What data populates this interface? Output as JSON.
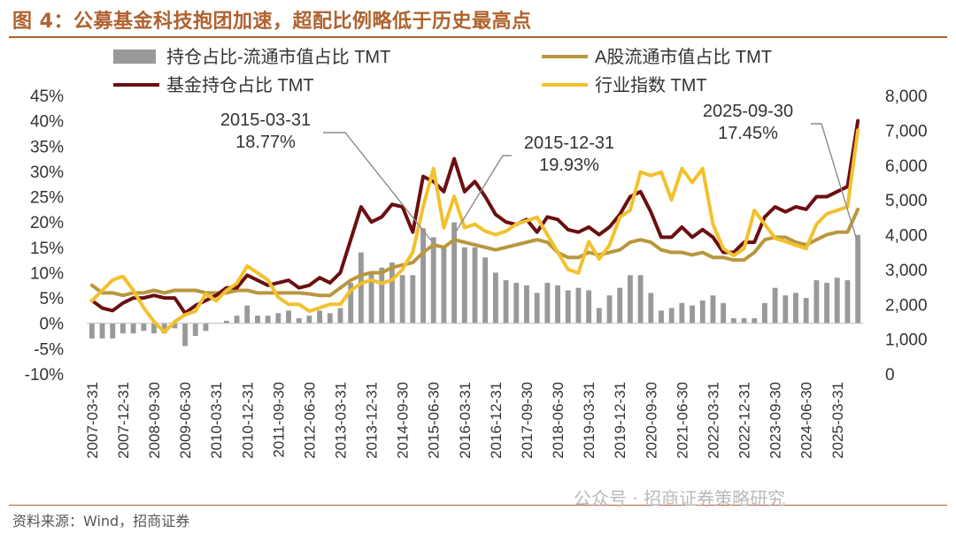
{
  "figure": {
    "title": "图 4：公募基金科技抱团加速，超配比例略低于历史最高点",
    "source": "资料来源：Wind，招商证券",
    "watermark": "公众号 · 招商证券策略研究"
  },
  "colors": {
    "title": "#B0622F",
    "fund_holding": "#6B0F12",
    "a_share": "#B8973D",
    "industry_index": "#F2C12E",
    "bars": "#999999"
  },
  "chart_data": {
    "type": "bar+line",
    "title": "",
    "xlabel": "",
    "ylabel_left": "",
    "ylabel_right": "",
    "ylim_left": [
      -0.1,
      0.45
    ],
    "yticks_left": [
      "-10%",
      "-5%",
      "0%",
      "5%",
      "10%",
      "15%",
      "20%",
      "25%",
      "30%",
      "35%",
      "40%",
      "45%"
    ],
    "ylim_right": [
      0,
      8000
    ],
    "yticks_right": [
      "0",
      "1,000",
      "2,000",
      "3,000",
      "4,000",
      "5,000",
      "6,000",
      "7,000",
      "8,000"
    ],
    "grid": false,
    "legend_position": "top",
    "x_tick_labels": [
      "2007-03-31",
      "2007-12-31",
      "2008-09-30",
      "2009-06-30",
      "2010-03-31",
      "2010-12-31",
      "2011-09-30",
      "2012-06-30",
      "2013-03-31",
      "2013-12-31",
      "2014-09-30",
      "2015-06-30",
      "2016-03-31",
      "2016-12-31",
      "2017-09-30",
      "2018-06-30",
      "2019-03-31",
      "2019-12-31",
      "2020-09-30",
      "2021-06-30",
      "2022-03-31",
      "2022-12-31",
      "2023-09-30",
      "2024-06-30",
      "2025-03-31"
    ],
    "quarters": [
      "2007-03-31",
      "2007-06-30",
      "2007-09-30",
      "2007-12-31",
      "2008-03-31",
      "2008-06-30",
      "2008-09-30",
      "2008-12-31",
      "2009-03-31",
      "2009-06-30",
      "2009-09-30",
      "2009-12-31",
      "2010-03-31",
      "2010-06-30",
      "2010-09-30",
      "2010-12-31",
      "2011-03-31",
      "2011-06-30",
      "2011-09-30",
      "2011-12-31",
      "2012-03-31",
      "2012-06-30",
      "2012-09-30",
      "2012-12-31",
      "2013-03-31",
      "2013-06-30",
      "2013-09-30",
      "2013-12-31",
      "2014-03-31",
      "2014-06-30",
      "2014-09-30",
      "2014-12-31",
      "2015-03-31",
      "2015-06-30",
      "2015-09-30",
      "2015-12-31",
      "2016-03-31",
      "2016-06-30",
      "2016-09-30",
      "2016-12-31",
      "2017-03-31",
      "2017-06-30",
      "2017-09-30",
      "2017-12-31",
      "2018-03-31",
      "2018-06-30",
      "2018-09-30",
      "2018-12-31",
      "2019-03-31",
      "2019-06-30",
      "2019-09-30",
      "2019-12-31",
      "2020-03-31",
      "2020-06-30",
      "2020-09-30",
      "2020-12-31",
      "2021-03-31",
      "2021-06-30",
      "2021-09-30",
      "2021-12-31",
      "2022-03-31",
      "2022-06-30",
      "2022-09-30",
      "2022-12-31",
      "2023-03-31",
      "2023-06-30",
      "2023-09-30",
      "2023-12-31",
      "2024-03-31",
      "2024-06-30",
      "2024-09-30",
      "2024-12-31",
      "2025-03-31",
      "2025-06-30",
      "2025-09-30"
    ],
    "series": [
      {
        "name": "持仓占比-流通市值占比 TMT",
        "type": "bar",
        "axis": "left",
        "color": "#999999",
        "values": [
          -0.03,
          -0.03,
          -0.03,
          -0.02,
          -0.02,
          -0.015,
          -0.02,
          -0.02,
          -0.01,
          -0.045,
          -0.025,
          -0.015,
          0.0,
          0.005,
          0.015,
          0.035,
          0.015,
          0.015,
          0.02,
          0.025,
          0.01,
          0.015,
          0.025,
          0.02,
          0.03,
          0.08,
          0.14,
          0.1,
          0.11,
          0.12,
          0.095,
          0.095,
          0.1877,
          0.17,
          0.15,
          0.1993,
          0.15,
          0.15,
          0.13,
          0.1,
          0.085,
          0.08,
          0.075,
          0.06,
          0.08,
          0.075,
          0.065,
          0.07,
          0.065,
          0.03,
          0.055,
          0.07,
          0.095,
          0.095,
          0.06,
          0.025,
          0.03,
          0.04,
          0.035,
          0.045,
          0.055,
          0.04,
          0.01,
          0.01,
          0.01,
          0.04,
          0.07,
          0.055,
          0.06,
          0.05,
          0.085,
          0.08,
          0.09,
          0.085,
          0.1745
        ]
      },
      {
        "name": "A股流通市值占比 TMT",
        "type": "line",
        "axis": "left",
        "color": "#B8973D",
        "values": [
          0.075,
          0.06,
          0.06,
          0.055,
          0.06,
          0.06,
          0.065,
          0.06,
          0.065,
          0.065,
          0.065,
          0.06,
          0.06,
          0.06,
          0.065,
          0.065,
          0.06,
          0.06,
          0.06,
          0.06,
          0.06,
          0.058,
          0.055,
          0.055,
          0.07,
          0.085,
          0.095,
          0.1,
          0.1,
          0.11,
          0.115,
          0.12,
          0.14,
          0.155,
          0.15,
          0.165,
          0.16,
          0.155,
          0.15,
          0.145,
          0.15,
          0.155,
          0.16,
          0.165,
          0.16,
          0.14,
          0.13,
          0.13,
          0.14,
          0.135,
          0.14,
          0.145,
          0.16,
          0.165,
          0.16,
          0.145,
          0.14,
          0.14,
          0.135,
          0.14,
          0.13,
          0.13,
          0.125,
          0.125,
          0.14,
          0.165,
          0.17,
          0.17,
          0.16,
          0.155,
          0.165,
          0.175,
          0.18,
          0.18,
          0.225
        ]
      },
      {
        "name": "基金持仓占比 TMT",
        "type": "line",
        "axis": "left",
        "color": "#6B0F12",
        "values": [
          0.045,
          0.03,
          0.025,
          0.04,
          0.05,
          0.05,
          0.055,
          0.05,
          0.05,
          0.02,
          0.035,
          0.045,
          0.055,
          0.07,
          0.07,
          0.095,
          0.085,
          0.075,
          0.08,
          0.085,
          0.07,
          0.075,
          0.09,
          0.08,
          0.1,
          0.165,
          0.23,
          0.2,
          0.21,
          0.235,
          0.23,
          0.18,
          0.29,
          0.28,
          0.26,
          0.325,
          0.26,
          0.28,
          0.25,
          0.215,
          0.2,
          0.195,
          0.205,
          0.18,
          0.21,
          0.205,
          0.185,
          0.18,
          0.19,
          0.175,
          0.19,
          0.215,
          0.25,
          0.26,
          0.22,
          0.17,
          0.17,
          0.19,
          0.17,
          0.185,
          0.17,
          0.14,
          0.14,
          0.16,
          0.16,
          0.21,
          0.23,
          0.22,
          0.23,
          0.225,
          0.25,
          0.25,
          0.26,
          0.27,
          0.4
        ]
      },
      {
        "name": "行业指数 TMT",
        "type": "line",
        "axis": "right",
        "color": "#F2C12E",
        "values": [
          2100,
          2400,
          2700,
          2800,
          2400,
          1900,
          1500,
          1200,
          1500,
          1700,
          1800,
          2300,
          2100,
          2400,
          2600,
          3100,
          2900,
          2700,
          2200,
          2000,
          2000,
          1800,
          1900,
          2000,
          2000,
          2400,
          2600,
          2700,
          2600,
          2700,
          3000,
          3500,
          4800,
          5900,
          4200,
          5100,
          4200,
          4300,
          4100,
          4000,
          4100,
          4300,
          4400,
          4500,
          4000,
          3500,
          3000,
          2900,
          3800,
          3300,
          3700,
          4500,
          4700,
          5800,
          5700,
          5800,
          5000,
          5900,
          5500,
          5900,
          4300,
          3600,
          3400,
          3600,
          4700,
          4300,
          3900,
          3800,
          3700,
          3600,
          4300,
          4600,
          4700,
          4800,
          7000
        ]
      }
    ],
    "annotations": [
      {
        "date": "2015-03-31",
        "value_label": "18.77%"
      },
      {
        "date": "2015-12-31",
        "value_label": "19.93%"
      },
      {
        "date": "2025-09-30",
        "value_label": "17.45%"
      }
    ]
  }
}
